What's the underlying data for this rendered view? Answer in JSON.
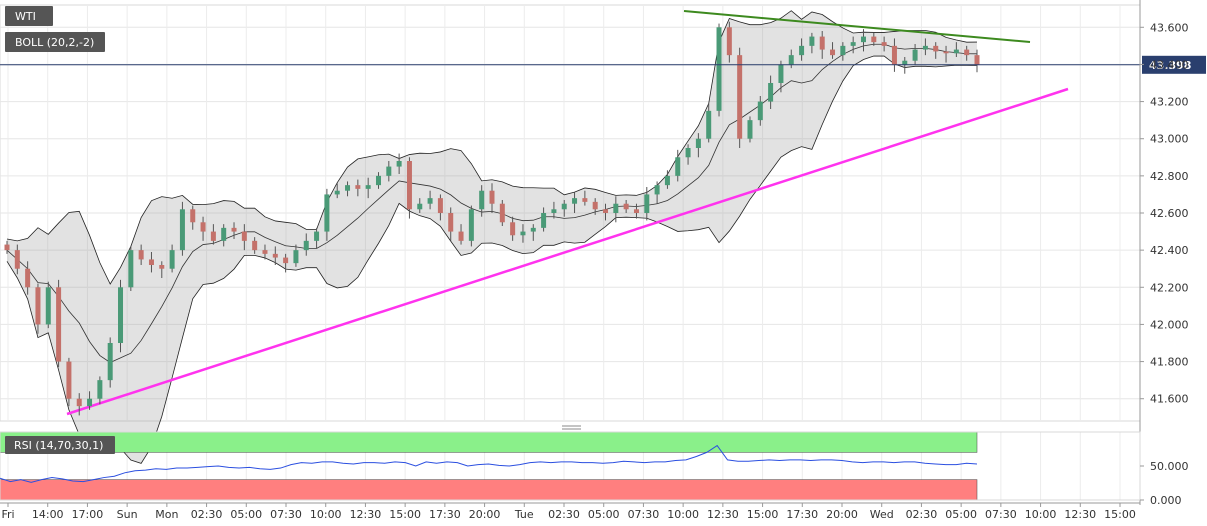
{
  "chart_data": {
    "type": "candlestick",
    "symbol": "WTI",
    "indicators": {
      "bollinger": {
        "label": "BOLL (20,2,-2)"
      },
      "rsi": {
        "label": "RSI (14,70,30,1)",
        "overbought": 70,
        "oversold": 30
      }
    },
    "current_price": "43.398",
    "y_axis": {
      "range": [
        41.48,
        43.72
      ],
      "ticks": [
        "43.600",
        "43.400",
        "43.200",
        "43.000",
        "42.800",
        "42.600",
        "42.400",
        "42.200",
        "42.000",
        "41.800",
        "41.600"
      ]
    },
    "rsi_axis": {
      "range": [
        0,
        100
      ],
      "ticks": [
        "50.000",
        "0.000"
      ]
    },
    "x_axis": {
      "ticks": [
        "Fri",
        "14:00",
        "17:00",
        "Sun",
        "Mon",
        "02:30",
        "05:00",
        "07:30",
        "10:00",
        "12:30",
        "15:00",
        "17:30",
        "20:00",
        "Tue",
        "02:30",
        "05:00",
        "07:30",
        "10:00",
        "12:30",
        "15:00",
        "17:30",
        "20:00",
        "Wed",
        "02:30",
        "05:00",
        "07:30",
        "10:00",
        "12:30",
        "15:00"
      ]
    },
    "close_series": [
      42.4,
      42.3,
      42.2,
      42.0,
      42.2,
      41.8,
      41.6,
      41.56,
      41.6,
      41.7,
      41.9,
      42.2,
      42.4,
      42.35,
      42.32,
      42.3,
      42.4,
      42.62,
      42.55,
      42.5,
      42.45,
      42.52,
      42.5,
      42.45,
      42.4,
      42.38,
      42.36,
      42.33,
      42.4,
      42.45,
      42.5,
      42.7,
      42.72,
      42.75,
      42.73,
      42.75,
      42.8,
      42.85,
      42.88,
      42.62,
      42.65,
      42.68,
      42.6,
      42.5,
      42.45,
      42.62,
      42.72,
      42.65,
      42.55,
      42.48,
      42.5,
      42.52,
      42.6,
      42.62,
      42.65,
      42.68,
      42.66,
      42.62,
      42.6,
      42.65,
      42.62,
      42.6,
      42.7,
      42.75,
      42.8,
      42.9,
      42.95,
      43.0,
      43.15,
      43.6,
      43.45,
      43.0,
      43.1,
      43.2,
      43.3,
      43.4,
      43.45,
      43.5,
      43.55,
      43.48,
      43.45,
      43.5,
      43.52,
      43.55,
      43.52,
      43.5,
      43.4,
      43.42,
      43.48,
      43.5,
      43.47,
      43.46,
      43.48,
      43.45,
      43.398
    ],
    "rsi_series": [
      32,
      27,
      30,
      26,
      30,
      33,
      31,
      28,
      27,
      30,
      33,
      35,
      40,
      43,
      44,
      46,
      45,
      47,
      47,
      48,
      49,
      50,
      48,
      47,
      48,
      46,
      45,
      47,
      52,
      55,
      54,
      56,
      56,
      54,
      53,
      55,
      55,
      54,
      56,
      55,
      50,
      56,
      54,
      56,
      55,
      50,
      52,
      53,
      51,
      50,
      52,
      55,
      56,
      55,
      56,
      56,
      55,
      55,
      54,
      55,
      57,
      56,
      55,
      56,
      56,
      58,
      59,
      64,
      70,
      80,
      59,
      57,
      57,
      58,
      59,
      58,
      59,
      59,
      58,
      59,
      59,
      58,
      56,
      55,
      56,
      56,
      55,
      56,
      56,
      54,
      53,
      52,
      52,
      54,
      53
    ]
  }
}
